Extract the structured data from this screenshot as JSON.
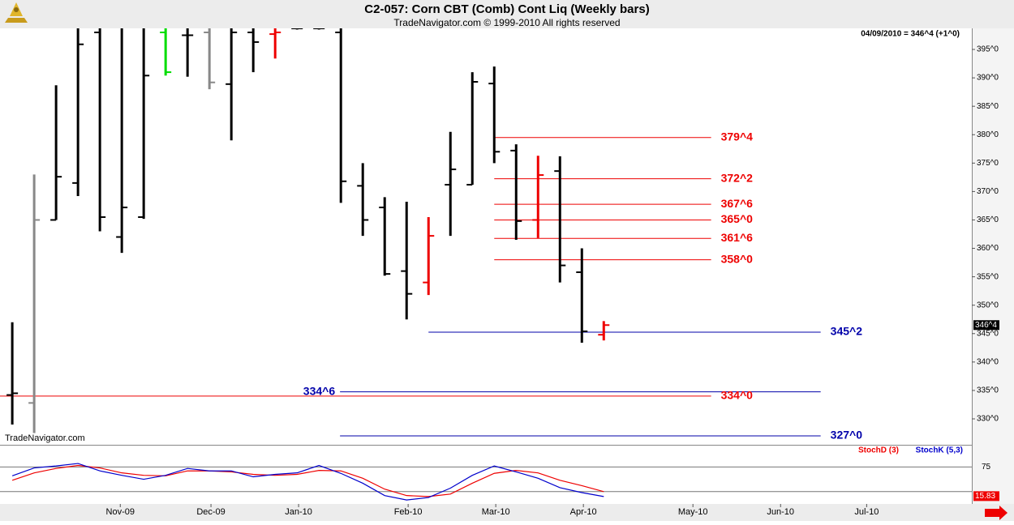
{
  "chart_data": {
    "type": "ohlc",
    "title": "C2-057:  Corn CBT (Comb) Cont Liq  (Weekly bars)",
    "subtitle": "TradeNavigator.com © 1999-2010 All rights reserved",
    "header_note": "04/09/2010 = 346^4 (+1^0)",
    "watermark": "TradeNavigator.com",
    "x": [
      0,
      1,
      2,
      3,
      4,
      5,
      6,
      7,
      8,
      9,
      10,
      11,
      12,
      13,
      14,
      15,
      16,
      17,
      18,
      19,
      20,
      21,
      22,
      23,
      24,
      25,
      26,
      27
    ],
    "open": [
      334.2,
      332.8,
      365,
      371.5,
      398,
      362,
      365.5,
      398,
      397.5,
      398,
      388.9,
      398,
      397.7,
      398.7,
      398.7,
      398,
      371,
      367.2,
      356,
      354,
      371.2,
      371.2,
      389,
      377.2,
      365,
      373.6,
      355.8,
      344.8
    ],
    "high": [
      347,
      373,
      388.7,
      399,
      399,
      399,
      399,
      399,
      399,
      399,
      399,
      399,
      399,
      399,
      399,
      399,
      375,
      369,
      368.2,
      365.5,
      380.5,
      391,
      392,
      378.3,
      376.3,
      376.2,
      360,
      347.2
    ],
    "low": [
      329,
      327.5,
      365,
      369.2,
      363,
      359.2,
      365.2,
      390.4,
      390.2,
      388,
      379,
      391,
      393.4,
      398.5,
      398.5,
      368,
      362.2,
      355.2,
      347.5,
      351.8,
      362.2,
      371.2,
      375,
      361.5,
      361.8,
      354,
      343.4,
      343.8
    ],
    "close": [
      334.5,
      365,
      372.6,
      395.9,
      365.5,
      367.2,
      390.4,
      391,
      397.5,
      389.2,
      398,
      396.3,
      398,
      398.7,
      398.7,
      371.8,
      365,
      355.5,
      352,
      362.2,
      373.9,
      389.3,
      377,
      364.8,
      372.9,
      357,
      345.4,
      346.5
    ],
    "colors": [
      "#000000",
      "#888888",
      "#000000",
      "#000000",
      "#000000",
      "#000000",
      "#000000",
      "#00dd00",
      "#000000",
      "#888888",
      "#000000",
      "#000000",
      "#ee0000",
      "#000000",
      "#000000",
      "#000000",
      "#000000",
      "#000000",
      "#000000",
      "#ee0000",
      "#000000",
      "#000000",
      "#000000",
      "#000000",
      "#ee0000",
      "#000000",
      "#000000",
      "#ee0000"
    ],
    "xlim": [
      -0.56,
      43.8
    ],
    "xticks": [
      {
        "value": 4.93,
        "label": "Nov-09"
      },
      {
        "value": 9.07,
        "label": "Dec-09"
      },
      {
        "value": 13.07,
        "label": "Jan-10"
      },
      {
        "value": 18.07,
        "label": "Feb-10"
      },
      {
        "value": 22.07,
        "label": "Mar-10"
      },
      {
        "value": 26.07,
        "label": "Apr-10"
      },
      {
        "value": 31.07,
        "label": "May-10"
      },
      {
        "value": 35.07,
        "label": "Jun-10"
      },
      {
        "value": 39,
        "label": "Jul-10"
      }
    ],
    "ylim": [
      325.58,
      398.71
    ],
    "yticks": [
      {
        "value": 330,
        "label": "330^0"
      },
      {
        "value": 335,
        "label": "335^0"
      },
      {
        "value": 340,
        "label": "340^0"
      },
      {
        "value": 345,
        "label": "345^0"
      },
      {
        "value": 350,
        "label": "350^0"
      },
      {
        "value": 355,
        "label": "355^0"
      },
      {
        "value": 360,
        "label": "360^0"
      },
      {
        "value": 365,
        "label": "365^0"
      },
      {
        "value": 370,
        "label": "370^0"
      },
      {
        "value": 375,
        "label": "375^0"
      },
      {
        "value": 380,
        "label": "380^0"
      },
      {
        "value": 385,
        "label": "385^0"
      },
      {
        "value": 390,
        "label": "390^0"
      },
      {
        "value": 395,
        "label": "395^0"
      }
    ],
    "last_price": {
      "value": 346.5,
      "label": "346^4"
    },
    "levels": [
      {
        "value": 379.5,
        "label": "379^4",
        "color": "#ee0000",
        "start": 22,
        "end": 31.9,
        "label_side": "end"
      },
      {
        "value": 372.25,
        "label": "372^2",
        "color": "#ee0000",
        "start": 22,
        "end": 31.9,
        "label_side": "end"
      },
      {
        "value": 367.75,
        "label": "367^6",
        "color": "#ee0000",
        "start": 22,
        "end": 31.9,
        "label_side": "end"
      },
      {
        "value": 365,
        "label": "365^0",
        "color": "#ee0000",
        "start": 22,
        "end": 31.9,
        "label_side": "end"
      },
      {
        "value": 361.75,
        "label": "361^6",
        "color": "#ee0000",
        "start": 22,
        "end": 31.9,
        "label_side": "end"
      },
      {
        "value": 358,
        "label": "358^0",
        "color": "#ee0000",
        "start": 22,
        "end": 31.9,
        "label_side": "end"
      },
      {
        "value": 345.25,
        "label": "345^2",
        "color": "#0000aa",
        "start": 19,
        "end": 36.9,
        "label_side": "end"
      },
      {
        "value": 334.75,
        "label": "334^6",
        "color": "#0000aa",
        "start": 14.96,
        "end": 36.9,
        "label_side": "start"
      },
      {
        "value": 334,
        "label": "334^0",
        "color": "#ee0000",
        "start": -0.56,
        "end": 31.9,
        "label_side": "end"
      },
      {
        "value": 327,
        "label": "327^0",
        "color": "#0000aa",
        "start": 14.96,
        "end": 36.9,
        "label_side": "end"
      }
    ],
    "indicator": {
      "type": "line",
      "ylim": [
        0,
        115
      ],
      "yticks": [
        75
      ],
      "guides": [
        75,
        25
      ],
      "last_value": 15.83,
      "series": [
        {
          "name": "StochD (3)",
          "color": "#ee0000",
          "values": [
            48,
            63,
            72,
            78,
            73,
            63,
            58,
            57,
            67,
            67,
            65,
            60,
            58,
            60,
            68,
            67,
            52,
            30,
            17,
            15,
            20,
            42,
            62,
            68,
            63,
            48,
            37,
            25
          ]
        },
        {
          "name": "StochK (5,3)",
          "color": "#0000cc",
          "values": [
            57,
            73,
            77,
            82,
            67,
            58,
            50,
            58,
            72,
            67,
            67,
            55,
            60,
            63,
            78,
            62,
            42,
            17,
            8,
            13,
            32,
            58,
            77,
            65,
            52,
            33,
            23,
            15
          ]
        }
      ]
    }
  }
}
